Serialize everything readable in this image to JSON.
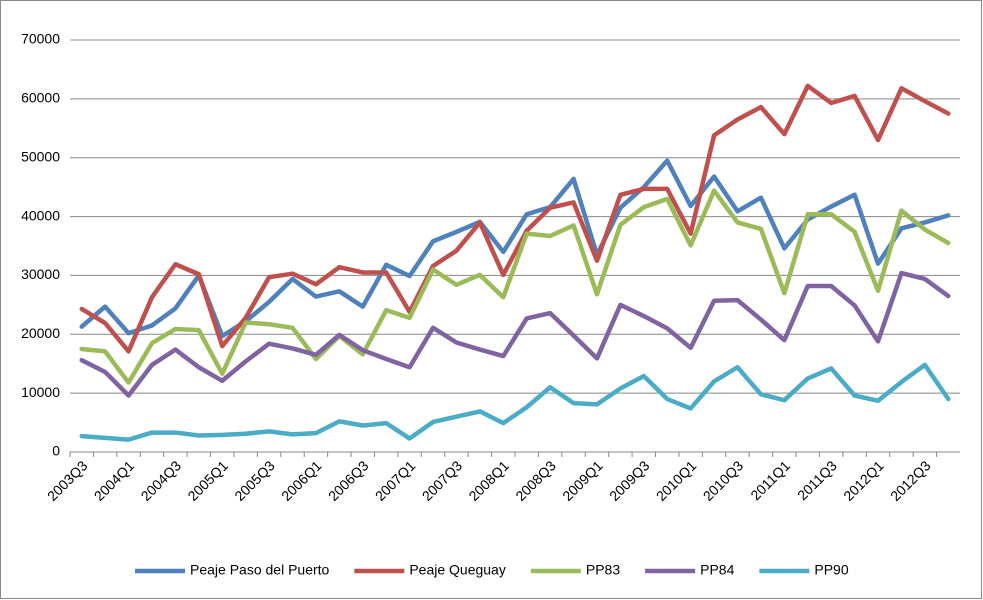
{
  "chart_data": {
    "type": "line",
    "categories": [
      "2003Q3",
      null,
      "2004Q1",
      null,
      "2004Q3",
      null,
      "2005Q1",
      null,
      "2005Q3",
      null,
      "2006Q1",
      null,
      "2006Q3",
      null,
      "2007Q1",
      null,
      "2007Q3",
      null,
      "2008Q1",
      null,
      "2008Q3",
      null,
      "2009Q1",
      null,
      "2009Q3",
      null,
      "2010Q1",
      null,
      "2010Q3",
      null,
      "2011Q1",
      null,
      "2011Q3",
      null,
      "2012Q1",
      null,
      "2012Q3",
      null
    ],
    "series": [
      {
        "name": "Peaje Paso del Puerto",
        "color": "#4f81bd",
        "values": [
          21300,
          24700,
          20200,
          21500,
          24400,
          30000,
          19700,
          22200,
          25500,
          29400,
          26400,
          27300,
          24700,
          31800,
          29900,
          35800,
          37400,
          39100,
          34000,
          40400,
          41600,
          46400,
          33500,
          41500,
          45000,
          49500,
          41800,
          46800,
          40900,
          43200,
          34600,
          39500,
          41700,
          43700,
          32000,
          38000,
          39000,
          40200
        ]
      },
      {
        "name": "Peaje Queguay",
        "color": "#c0504d",
        "values": [
          24300,
          21900,
          17100,
          26300,
          31900,
          30200,
          18000,
          22800,
          29700,
          30300,
          28500,
          31400,
          30500,
          30500,
          23800,
          31600,
          34200,
          39000,
          30100,
          37600,
          41500,
          42400,
          32500,
          43700,
          44700,
          44700,
          37100,
          53800,
          56500,
          58600,
          54000,
          62200,
          59300,
          60500,
          53000,
          61800,
          59600,
          57500
        ]
      },
      {
        "name": "PP83",
        "color": "#9bbb59",
        "values": [
          17500,
          17100,
          11800,
          18500,
          20900,
          20700,
          13300,
          22000,
          21700,
          21100,
          15800,
          19700,
          16600,
          24100,
          22800,
          31000,
          28400,
          30100,
          26300,
          37100,
          36700,
          38500,
          26800,
          38600,
          41600,
          43000,
          35100,
          44400,
          39000,
          37900,
          27000,
          40400,
          40400,
          37400,
          27400,
          41000,
          37800,
          35500
        ]
      },
      {
        "name": "PP84",
        "color": "#8064a2",
        "values": [
          15600,
          13600,
          9600,
          14800,
          17400,
          14400,
          12100,
          15400,
          18400,
          17600,
          16500,
          19900,
          17300,
          15800,
          14400,
          21100,
          18600,
          17400,
          16300,
          22700,
          23600,
          19800,
          15900,
          25000,
          23100,
          21000,
          17700,
          25700,
          25800,
          22500,
          19000,
          28200,
          28200,
          24900,
          18800,
          30400,
          29400,
          26500
        ]
      },
      {
        "name": "PP90",
        "color": "#4bacc6",
        "values": [
          2700,
          2400,
          2100,
          3300,
          3300,
          2800,
          2900,
          3100,
          3500,
          3000,
          3200,
          5200,
          4500,
          4900,
          2300,
          5100,
          6000,
          6900,
          4900,
          7600,
          11000,
          8300,
          8100,
          10800,
          12900,
          9000,
          7400,
          12000,
          14400,
          9800,
          8800,
          12500,
          14200,
          9600,
          8700,
          11900,
          14800,
          9000
        ]
      }
    ],
    "ylim": [
      0,
      70000
    ],
    "yticks": [
      0,
      10000,
      20000,
      30000,
      40000,
      50000,
      60000,
      70000
    ],
    "grid": true,
    "legend": "bottom"
  }
}
